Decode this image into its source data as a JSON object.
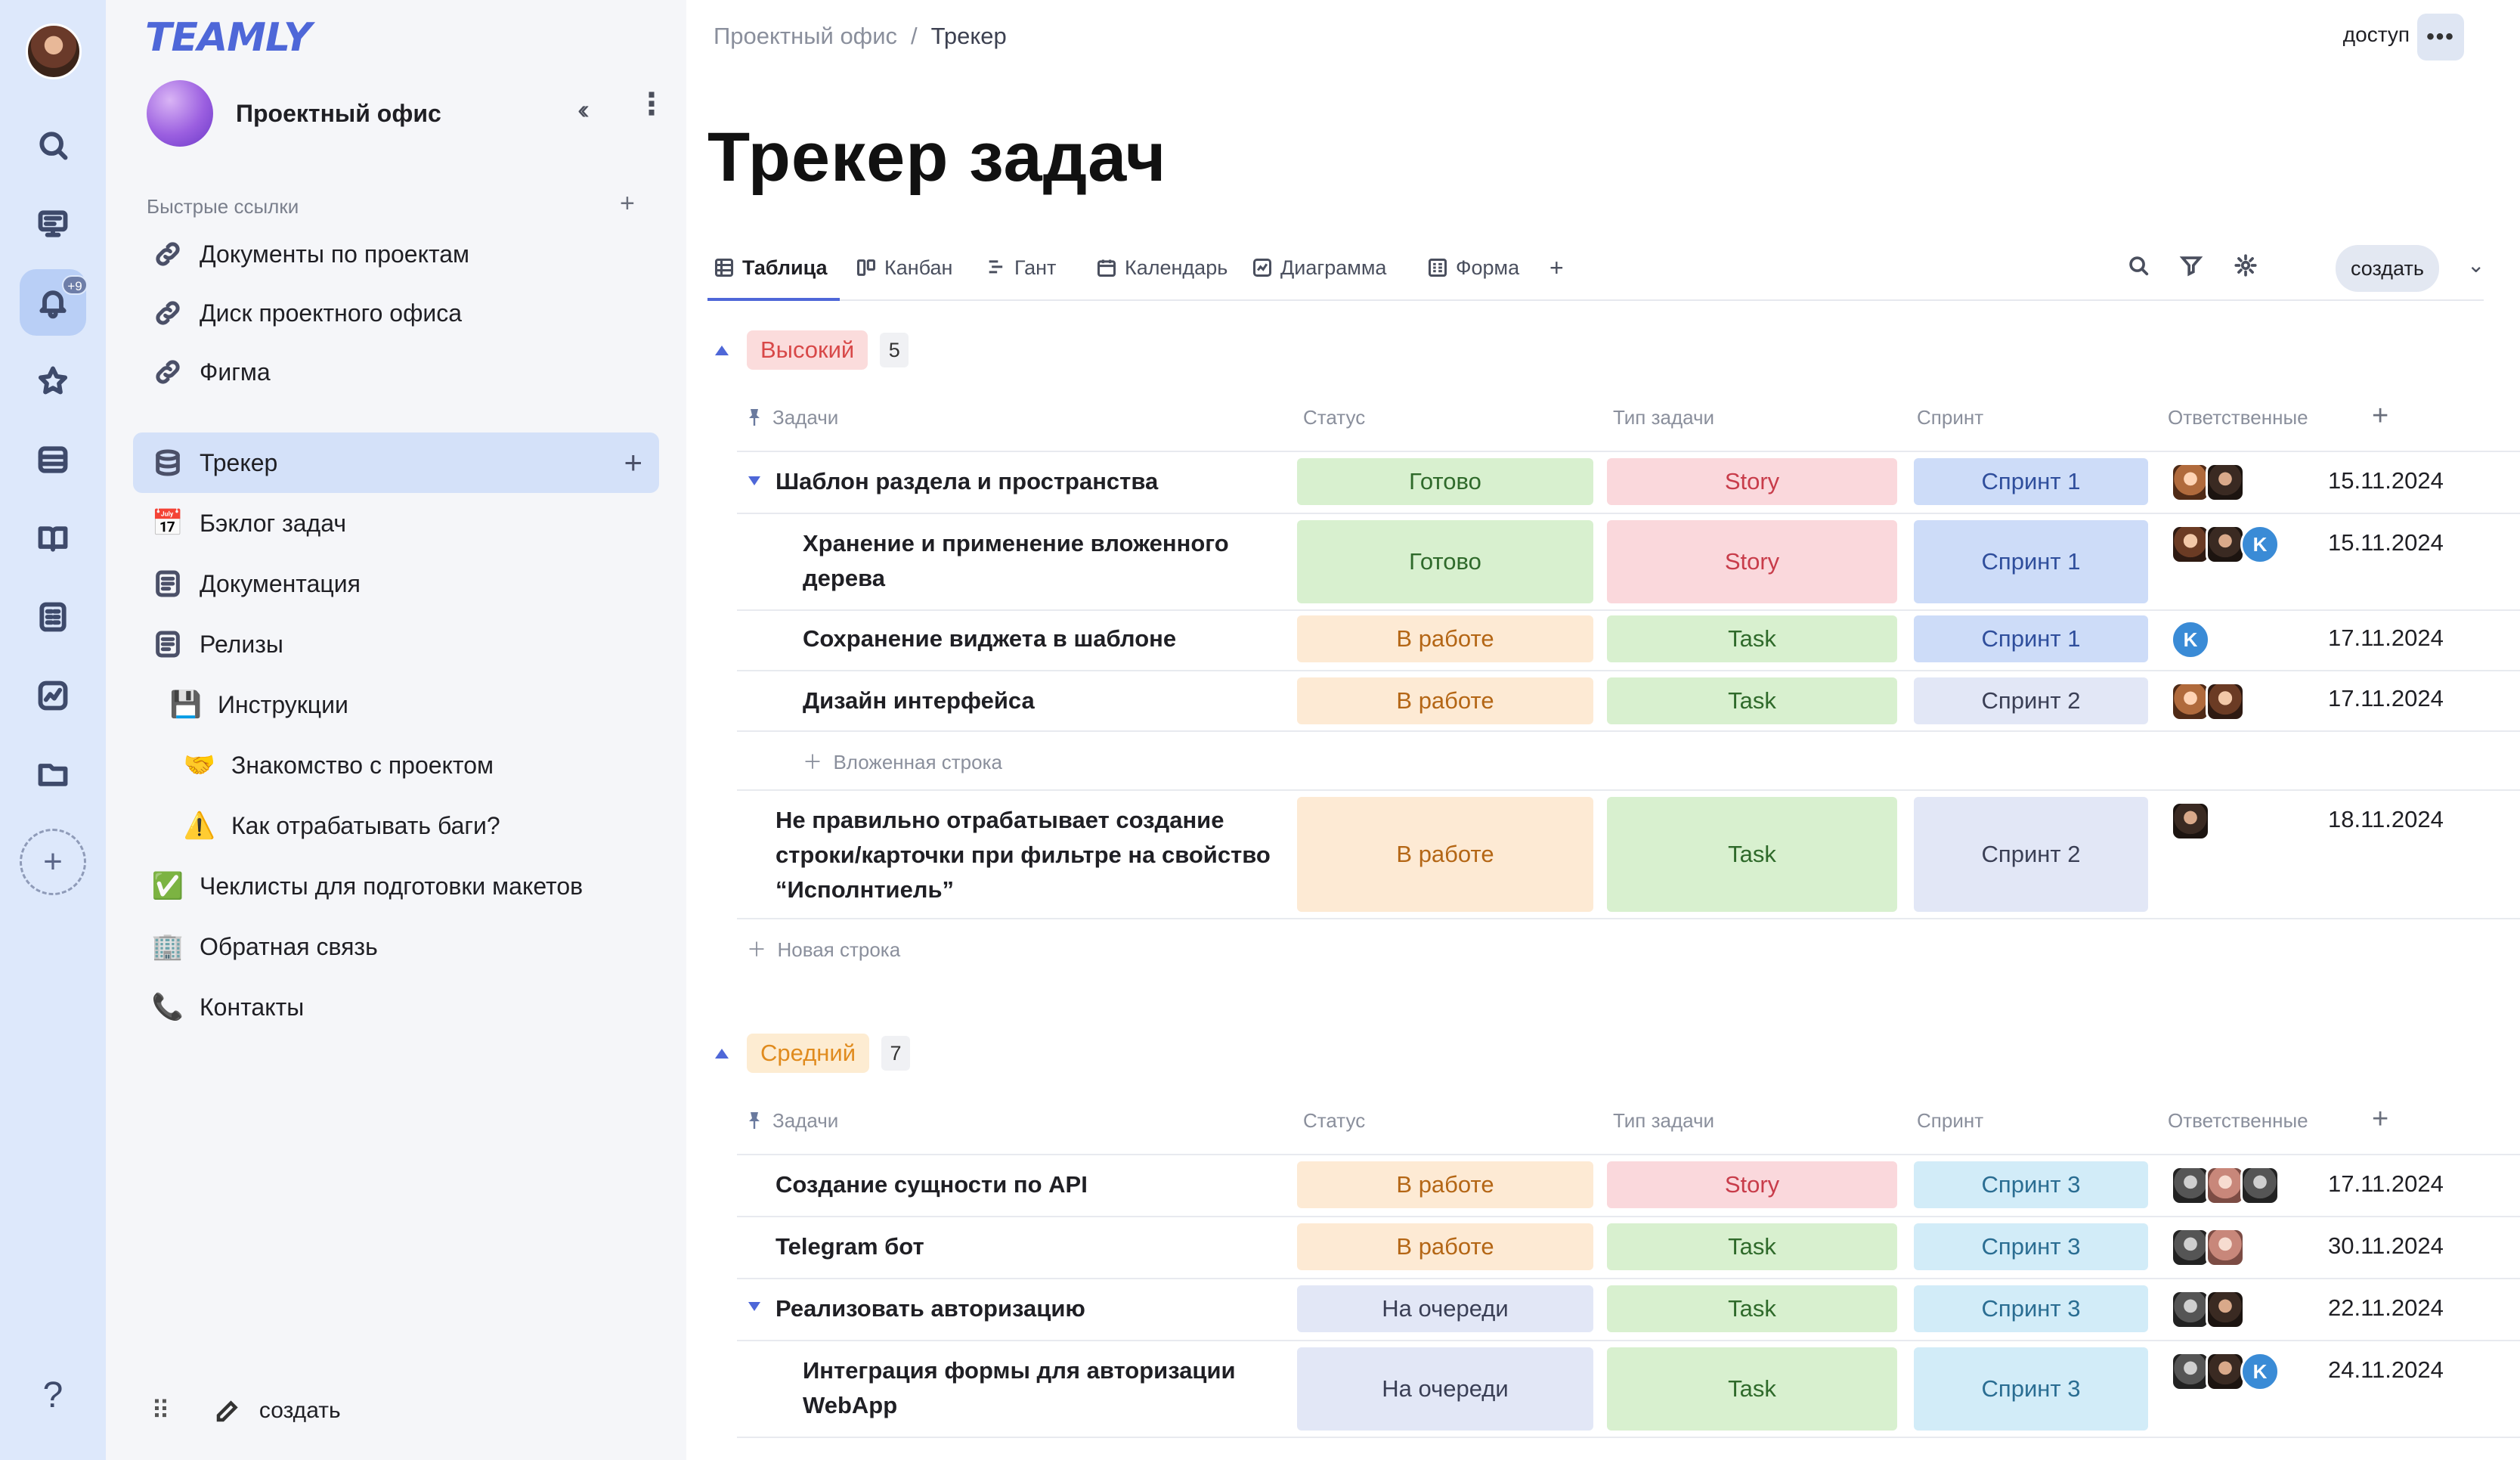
{
  "rail": {
    "notif_badge": "+9",
    "help": "?"
  },
  "sidebar": {
    "logo": "TEAMLY",
    "workspace": "Проектный офис",
    "quick_links_title": "Быстрые ссылки",
    "quick_links": [
      "Документы по проектам",
      "Диск проектного офиса",
      "Фигма"
    ],
    "items": [
      {
        "label": "Трекер",
        "icon": "database-icon"
      },
      {
        "label": "Бэклог задач",
        "icon": "calendar-emoji"
      },
      {
        "label": "Документация",
        "icon": "document-icon"
      },
      {
        "label": "Релизы",
        "icon": "document-icon"
      },
      {
        "label": "Инструкции",
        "icon": "floppy-emoji"
      },
      {
        "label": "Знакомство с проектом",
        "icon": "handshake-emoji"
      },
      {
        "label": "Как отрабатывать баги?",
        "icon": "warning-emoji"
      },
      {
        "label": "Чеклисты для подготовки макетов",
        "icon": "checkmark-emoji"
      },
      {
        "label": "Обратная связь",
        "icon": "building-emoji"
      },
      {
        "label": "Контакты",
        "icon": "phone-emoji"
      }
    ],
    "create": "создать"
  },
  "header": {
    "breadcrumb": [
      "Проектный офис",
      "Трекер"
    ],
    "access": "доступ",
    "title": "Трекер задач"
  },
  "views": {
    "tabs": [
      "Таблица",
      "Канбан",
      "Гант",
      "Календарь",
      "Диаграмма",
      "Форма"
    ],
    "active": "Таблица",
    "create": "создать"
  },
  "columns": [
    "Задачи",
    "Статус",
    "Тип задачи",
    "Спринт",
    "Ответственные"
  ],
  "groups": [
    {
      "priority": "Высокий",
      "count": "5",
      "rows": [
        {
          "name": "Шаблон раздела и пространства",
          "status": "Готово",
          "type": "Story",
          "sprint": "Спринт 1",
          "date": "15.11.2024"
        },
        {
          "name": "Хранение и применение вложенного дерева",
          "status": "Готово",
          "type": "Story",
          "sprint": "Спринт 1",
          "date": "15.11.2024"
        },
        {
          "name": "Сохранение виджета в шаблоне",
          "status": "В работе",
          "type": "Task",
          "sprint": "Спринт 1",
          "date": "17.11.2024"
        },
        {
          "name": "Дизайн интерфейса",
          "status": "В работе",
          "type": "Task",
          "sprint": "Спринт 2",
          "date": "17.11.2024"
        },
        {
          "name": "Не правильно отрабатывает создание строки/карточки при фильтре на свойство “Исполнтиель”",
          "status": "В работе",
          "type": "Task",
          "sprint": "Спринт 2",
          "date": "18.11.2024"
        }
      ],
      "nested_add": "Вложенная строка",
      "new_row": "Новая строка"
    },
    {
      "priority": "Средний",
      "count": "7",
      "rows": [
        {
          "name": "Создание сущности по API",
          "status": "В работе",
          "type": "Story",
          "sprint": "Спринт 3",
          "date": "17.11.2024"
        },
        {
          "name": "Telegram бот",
          "status": "В работе",
          "type": "Task",
          "sprint": "Спринт 3",
          "date": "30.11.2024"
        },
        {
          "name": "Реализовать авторизацию",
          "status": "На очереди",
          "type": "Task",
          "sprint": "Спринт 3",
          "date": "22.11.2024"
        },
        {
          "name": "Интеграция формы для авторизации WebApp",
          "status": "На очереди",
          "type": "Task",
          "sprint": "Спринт 3",
          "date": "24.11.2024"
        }
      ]
    }
  ],
  "avatar_initial": "K",
  "colors": {
    "accent": "#4e67d8",
    "rail_bg": "#dde8fb",
    "sidebar_bg": "#f5f6f9"
  }
}
